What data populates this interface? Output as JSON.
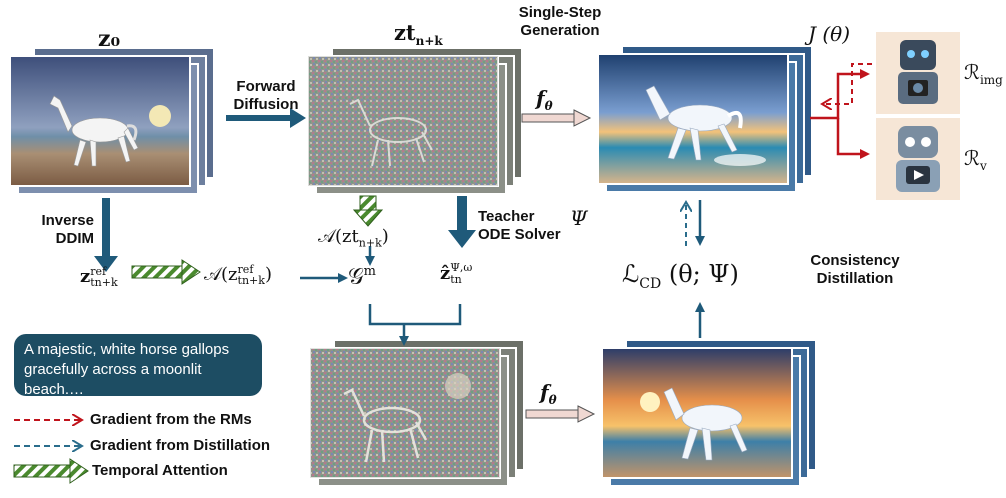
{
  "colors": {
    "arrow_blue": "#1f5a7a",
    "red": "#c0141c",
    "dashed_blue": "#2a6d8c",
    "green": "#4a8a2e",
    "prompt_bg": "#1d4d63",
    "rm_bg": "#f6e6d6"
  },
  "labels": {
    "z0": "z₀",
    "forward_diffusion": "Forward\nDiffusion",
    "single_step": "Single-Step\nGeneration",
    "inverse_ddim": "Inverse\nDDIM",
    "teacher_solver": "Teacher\nODE Solver",
    "psi": "Ψ",
    "consistency_distillation": "Consistency\nDistillation",
    "J_theta": "J (θ)",
    "R_img": "ℛimg",
    "R_v": "ℛv",
    "f_theta_top": "fθ",
    "f_theta_bottom": "fθ",
    "z_tnk": "zt",
    "z_tnk_sub": "n+k",
    "A_z": "𝒜(zt",
    "A_z_sub": "n+k",
    "A_z_close": ")",
    "z_ref": "z",
    "z_ref_sup": "ref",
    "z_ref_sub": "tn+k",
    "A_zref": "𝒜(z",
    "A_zref_sup": "ref",
    "A_zref_sub": "tn+k",
    "A_zref_close": ")",
    "G_m": "𝒢",
    "G_m_sup": "m",
    "z_hat": "ẑ",
    "z_hat_sup": "Ψ,ω",
    "z_hat_sub": "tn",
    "L_cd": "ℒCD (θ; Ψ)"
  },
  "prompt": "A majestic, white horse gallops gracefully across a moonlit beach.…",
  "legend": [
    {
      "text": "Gradient from the RMs",
      "style": "dashed-red"
    },
    {
      "text": "Gradient from Distillation",
      "style": "dashed-blue"
    },
    {
      "text": "Temporal Attention",
      "style": "hatched-green"
    }
  ]
}
